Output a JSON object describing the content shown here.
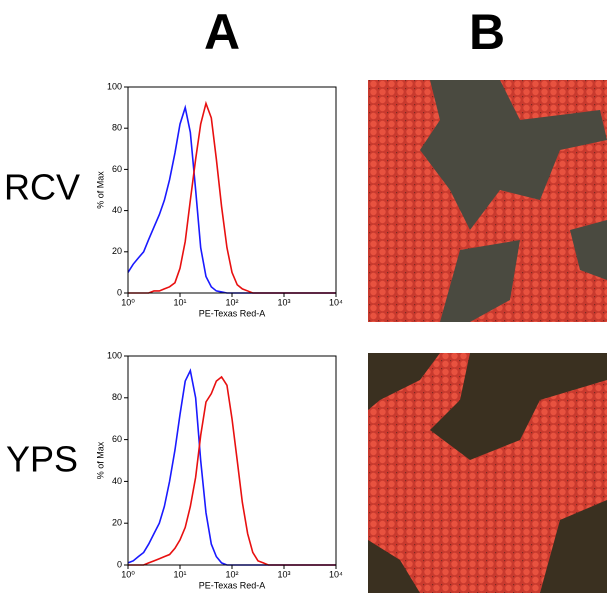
{
  "panels": [
    "A",
    "B"
  ],
  "rows": [
    "RCV",
    "YPS"
  ],
  "chart_data": [
    {
      "type": "line",
      "xlabel": "PE-Texas Red-A",
      "ylabel": "% of Max",
      "xscale": "log",
      "x": [
        1,
        1.26,
        1.58,
        2,
        2.5,
        3.16,
        4,
        5,
        6.3,
        8,
        10,
        12.6,
        15.8,
        20,
        25,
        31.6,
        40,
        50,
        63,
        80,
        100,
        126,
        158,
        200,
        251,
        316,
        400,
        500,
        631,
        1000,
        10000
      ],
      "xlim": [
        1,
        10000
      ],
      "xticks": [
        {
          "value": 1,
          "label": "10⁰"
        },
        {
          "value": 10,
          "label": "10¹"
        },
        {
          "value": 100,
          "label": "10²"
        },
        {
          "value": 1000,
          "label": "10³"
        },
        {
          "value": 10000,
          "label": "10⁴"
        }
      ],
      "ylim": [
        0,
        100
      ],
      "yticks": [
        0,
        20,
        40,
        60,
        80,
        100
      ],
      "series": [
        {
          "color": "#1a1aff",
          "values": [
            10,
            14,
            17,
            20,
            26,
            32,
            38,
            45,
            55,
            68,
            82,
            90,
            78,
            50,
            22,
            8,
            3,
            1,
            0.5,
            0,
            0,
            0,
            0,
            0,
            0,
            0,
            0,
            0,
            0,
            0,
            0
          ]
        },
        {
          "color": "#e81010",
          "values": [
            0,
            0,
            0,
            0,
            0,
            1,
            1,
            2,
            3,
            5,
            12,
            25,
            45,
            65,
            82,
            92,
            85,
            65,
            42,
            22,
            10,
            4,
            2,
            1,
            0,
            0,
            0,
            0,
            0,
            0,
            0
          ]
        }
      ]
    },
    {
      "type": "line",
      "xlabel": "PE-Texas Red-A",
      "ylabel": "% of Max",
      "xscale": "log",
      "x": [
        1,
        1.26,
        1.58,
        2,
        2.5,
        3.16,
        4,
        5,
        6.3,
        8,
        10,
        12.6,
        15.8,
        20,
        25,
        31.6,
        40,
        50,
        63,
        80,
        100,
        126,
        158,
        200,
        251,
        316,
        400,
        500,
        631,
        1000,
        10000
      ],
      "xlim": [
        1,
        10000
      ],
      "xticks": [
        {
          "value": 1,
          "label": "10⁰"
        },
        {
          "value": 10,
          "label": "10¹"
        },
        {
          "value": 100,
          "label": "10²"
        },
        {
          "value": 1000,
          "label": "10³"
        },
        {
          "value": 10000,
          "label": "10⁴"
        }
      ],
      "ylim": [
        0,
        100
      ],
      "yticks": [
        0,
        20,
        40,
        60,
        80,
        100
      ],
      "series": [
        {
          "color": "#1a1aff",
          "values": [
            1,
            2,
            4,
            6,
            10,
            15,
            20,
            28,
            40,
            55,
            72,
            88,
            93,
            80,
            50,
            25,
            10,
            4,
            1,
            0,
            0,
            0,
            0,
            0,
            0,
            0,
            0,
            0,
            0,
            0,
            0
          ]
        },
        {
          "color": "#e81010",
          "values": [
            0,
            0,
            0,
            0,
            1,
            2,
            3,
            4,
            5,
            8,
            12,
            18,
            28,
            42,
            62,
            78,
            82,
            88,
            90,
            86,
            70,
            50,
            30,
            15,
            6,
            2,
            1,
            0,
            0,
            0,
            0
          ]
        }
      ]
    }
  ]
}
